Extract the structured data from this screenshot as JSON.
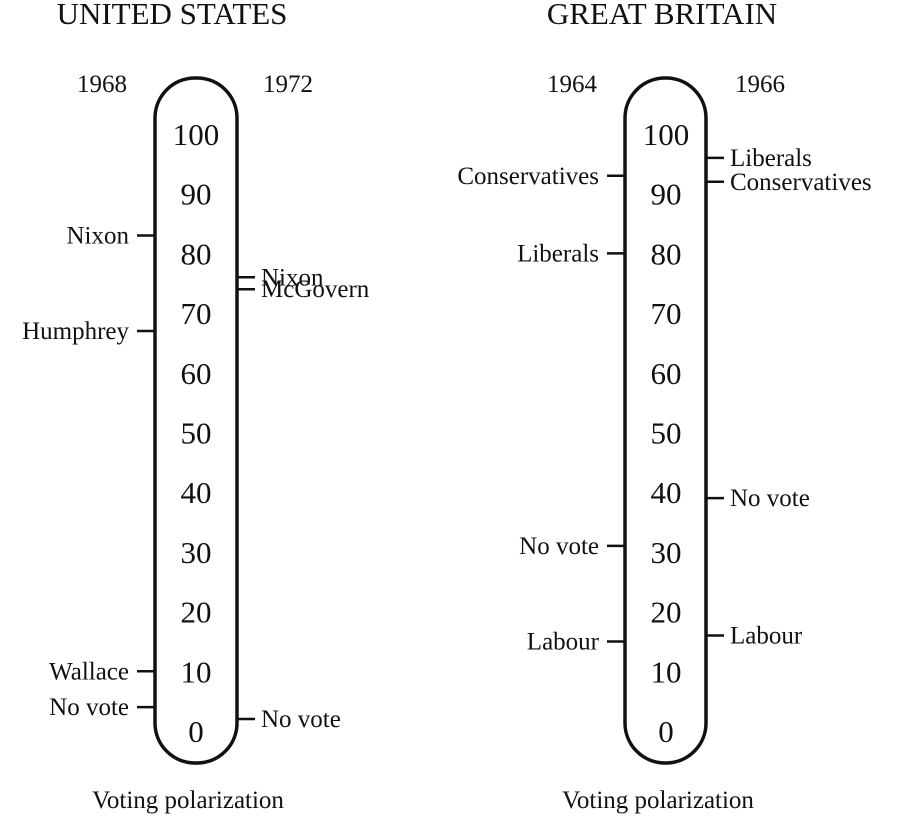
{
  "panels": [
    {
      "title": "UNITED STATES",
      "left_year": "1968",
      "right_year": "1972",
      "caption": "Voting polarization",
      "ticks": [
        "100",
        "90",
        "80",
        "70",
        "60",
        "50",
        "40",
        "30",
        "20",
        "10",
        "0"
      ],
      "left_items": [
        {
          "label": "Nixon",
          "value": 83
        },
        {
          "label": "Humphrey",
          "value": 67
        },
        {
          "label": "Wallace",
          "value": 10
        },
        {
          "label": "No vote",
          "value": 4
        }
      ],
      "right_items": [
        {
          "label": "Nixon",
          "value": 76
        },
        {
          "label": "McGovern",
          "value": 74
        },
        {
          "label": "No vote",
          "value": 2
        }
      ]
    },
    {
      "title": "GREAT BRITAIN",
      "left_year": "1964",
      "right_year": "1966",
      "caption": "Voting polarization",
      "ticks": [
        "100",
        "90",
        "80",
        "70",
        "60",
        "50",
        "40",
        "30",
        "20",
        "10",
        "0"
      ],
      "left_items": [
        {
          "label": "Conservatives",
          "value": 93
        },
        {
          "label": "Liberals",
          "value": 80
        },
        {
          "label": "No vote",
          "value": 31
        },
        {
          "label": "Labour",
          "value": 15
        }
      ],
      "right_items": [
        {
          "label": "Liberals",
          "value": 96
        },
        {
          "label": "Conservatives",
          "value": 92
        },
        {
          "label": "No vote",
          "value": 39
        },
        {
          "label": "Labour",
          "value": 16
        }
      ]
    }
  ]
}
